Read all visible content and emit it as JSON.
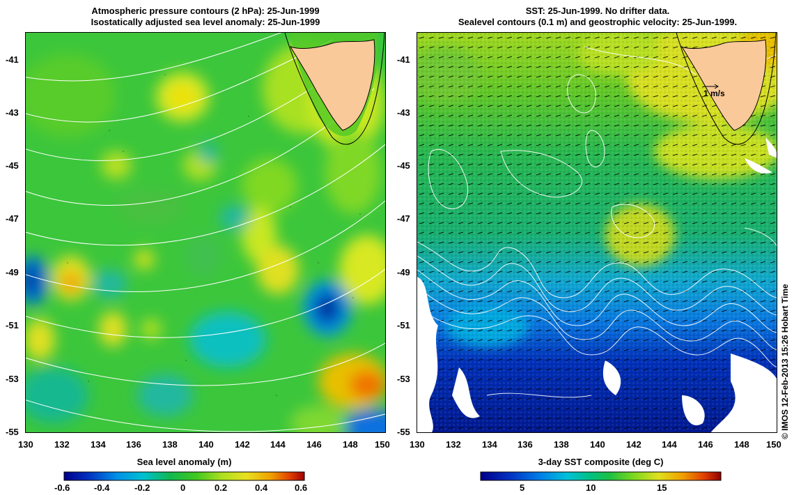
{
  "left_panel": {
    "title_line1": "Atmospheric pressure contours (2 hPa): 25-Jun-1999",
    "title_line2": "Isostatically adjusted sea level anomaly: 25-Jun-1999",
    "y_ticks": [
      "-41",
      "-43",
      "-45",
      "-47",
      "-49",
      "-51",
      "-53",
      "-55"
    ],
    "x_ticks": [
      "130",
      "132",
      "134",
      "136",
      "138",
      "140",
      "142",
      "144",
      "146",
      "148",
      "150"
    ],
    "colorbar_title": "Sea level anomaly (m)",
    "colorbar_ticks": [
      "-0.6",
      "-0.4",
      "-0.2",
      "0",
      "0.2",
      "0.4",
      "0.6"
    ]
  },
  "right_panel": {
    "title_line1": "SST: 25-Jun-1999. No drifter data.",
    "title_line2": "Sealevel contours (0.1 m) and geostrophic velocity: 25-Jun-1999.",
    "y_ticks": [
      "-41",
      "-43",
      "-45",
      "-47",
      "-49",
      "-51",
      "-53",
      "-55"
    ],
    "x_ticks": [
      "130",
      "132",
      "134",
      "136",
      "138",
      "140",
      "142",
      "144",
      "146",
      "148",
      "150"
    ],
    "velocity_scale_label": "1 m/s",
    "colorbar_title": "3-day SST composite (deg C)",
    "colorbar_ticks": [
      "5",
      "10",
      "15"
    ]
  },
  "copyright": "© IMOS 12-Feb-2013 15:26 Hobart Time",
  "colors": {
    "land": "#f9c99a",
    "contour": "#ffffff",
    "sla_scale": [
      "#00008a",
      "#0050d0",
      "#00a8f0",
      "#00c8b0",
      "#10b840",
      "#30c820",
      "#90e020",
      "#e8e820",
      "#f0a000",
      "#e05000",
      "#b00000"
    ],
    "sst_scale": [
      "#00008a",
      "#0030c0",
      "#0080e8",
      "#00c0e0",
      "#00c890",
      "#20c040",
      "#60d020",
      "#c0e020",
      "#f0d000",
      "#f08000",
      "#d02000",
      "#900000"
    ]
  }
}
